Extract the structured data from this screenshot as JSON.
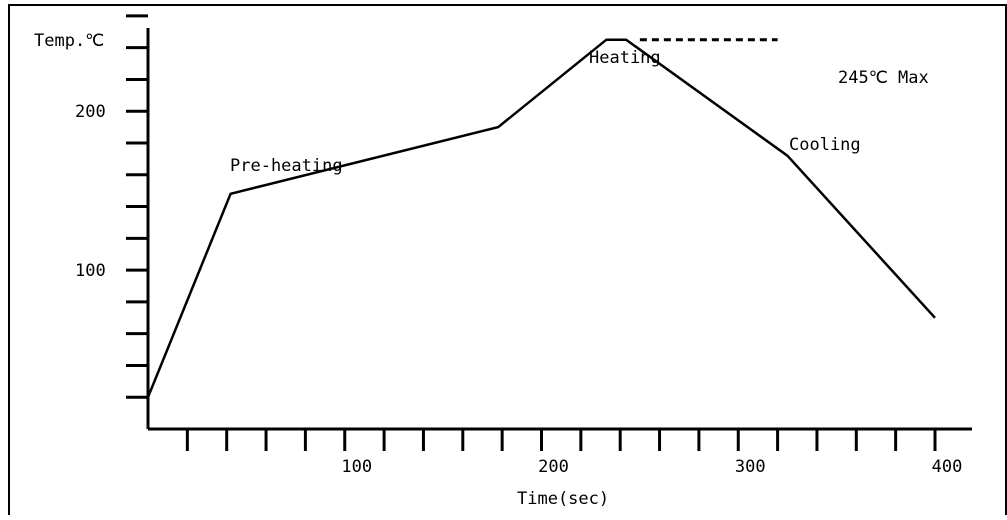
{
  "chart_data": {
    "type": "line",
    "title": "",
    "ylabel": "Temp.℃",
    "xlabel": "Time(sec)",
    "x_ticks": [
      100,
      200,
      300,
      400
    ],
    "y_ticks": [
      100,
      200
    ],
    "xlim": [
      0,
      400
    ],
    "ylim": [
      0,
      270
    ],
    "x_minor_step": 20,
    "y_minor_step": 20,
    "series": [
      {
        "x": [
          0,
          42,
          178,
          233,
          243,
          325,
          400
        ],
        "values": [
          20,
          148,
          190,
          245,
          245,
          172,
          70
        ]
      }
    ],
    "max_line": {
      "value": 245,
      "x_start": 250,
      "x_end": 320
    },
    "annotations": {
      "preheat": "Pre-heating",
      "heating": "Heating",
      "cooling": "Cooling",
      "max": "245℃ Max"
    }
  }
}
